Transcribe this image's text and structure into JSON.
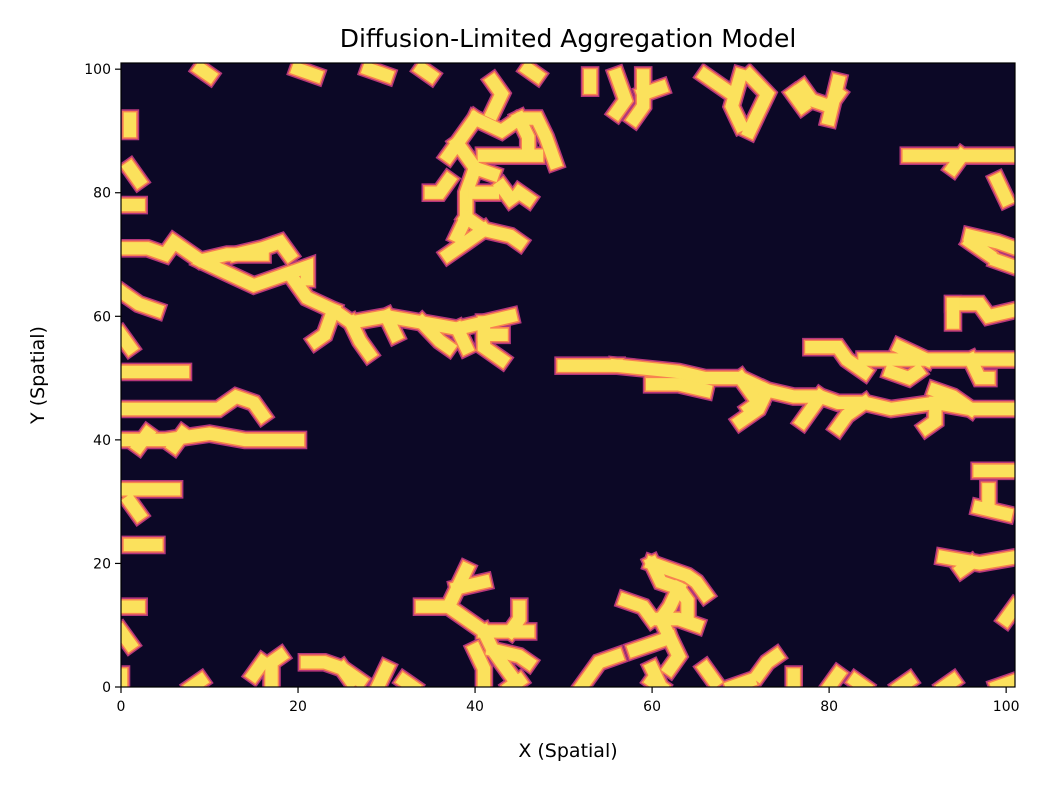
{
  "chart_data": {
    "type": "heatmap",
    "title": "Diffusion-Limited Aggregation Model",
    "xlabel": "X (Spatial)",
    "ylabel": "Y (Spatial)",
    "xlim": [
      0,
      101
    ],
    "ylim": [
      0,
      101
    ],
    "xticks": [
      0,
      20,
      40,
      60,
      80,
      100
    ],
    "yticks": [
      0,
      20,
      40,
      60,
      80,
      100
    ],
    "colormap": {
      "empty": "#0c0826",
      "edge_outer": "#b5367a",
      "edge_inner": "#f8824f",
      "aggregate": "#fbe15c"
    },
    "aggregate_paths": [
      [
        [
          0,
          71
        ],
        [
          3,
          71
        ],
        [
          5,
          70
        ],
        [
          6,
          72
        ],
        [
          9,
          69
        ],
        [
          12,
          70
        ],
        [
          16,
          70
        ]
      ],
      [
        [
          9,
          69
        ],
        [
          12,
          67
        ],
        [
          15,
          65
        ],
        [
          19,
          67
        ],
        [
          21,
          63
        ],
        [
          24,
          61
        ],
        [
          26,
          59
        ],
        [
          30,
          60
        ],
        [
          34,
          59
        ],
        [
          38,
          58
        ],
        [
          41,
          59
        ],
        [
          44,
          60
        ]
      ],
      [
        [
          13,
          70
        ],
        [
          16,
          71
        ],
        [
          18,
          72
        ],
        [
          19,
          70
        ]
      ],
      [
        [
          19,
          67
        ],
        [
          21,
          68
        ],
        [
          21,
          66
        ]
      ],
      [
        [
          24,
          61
        ],
        [
          23,
          57
        ],
        [
          22,
          56
        ]
      ],
      [
        [
          26,
          59
        ],
        [
          27,
          56
        ],
        [
          28,
          54
        ]
      ],
      [
        [
          30,
          60
        ],
        [
          31,
          57
        ]
      ],
      [
        [
          34,
          59
        ],
        [
          36,
          56
        ],
        [
          37,
          55
        ]
      ],
      [
        [
          38,
          58
        ],
        [
          39,
          55
        ]
      ],
      [
        [
          41,
          59
        ],
        [
          41,
          55
        ],
        [
          43,
          53
        ]
      ],
      [
        [
          41,
          57
        ],
        [
          43,
          57
        ]
      ],
      [
        [
          0,
          64
        ],
        [
          2,
          62
        ],
        [
          4,
          61
        ]
      ],
      [
        [
          0,
          57
        ],
        [
          1,
          55
        ]
      ],
      [
        [
          0,
          51
        ],
        [
          7,
          51
        ]
      ],
      [
        [
          0,
          45
        ],
        [
          8,
          45
        ],
        [
          11,
          45
        ],
        [
          13,
          47
        ],
        [
          15,
          46
        ],
        [
          16,
          44
        ]
      ],
      [
        [
          0,
          40
        ],
        [
          5,
          40
        ],
        [
          10,
          41
        ],
        [
          14,
          40
        ],
        [
          20,
          40
        ]
      ],
      [
        [
          2,
          39
        ],
        [
          3,
          41
        ]
      ],
      [
        [
          6,
          39
        ],
        [
          7,
          41
        ]
      ],
      [
        [
          0,
          32
        ],
        [
          6,
          32
        ]
      ],
      [
        [
          1,
          30
        ],
        [
          2,
          28
        ]
      ],
      [
        [
          1,
          23
        ],
        [
          4,
          23
        ]
      ],
      [
        [
          0,
          13
        ],
        [
          2,
          13
        ]
      ],
      [
        [
          0,
          9
        ],
        [
          1,
          7
        ]
      ],
      [
        [
          0,
          2
        ],
        [
          0,
          0
        ]
      ],
      [
        [
          40,
          92
        ],
        [
          43,
          90
        ],
        [
          45,
          92
        ],
        [
          47,
          92
        ],
        [
          48,
          89
        ],
        [
          49,
          85
        ]
      ],
      [
        [
          45,
          92
        ],
        [
          46,
          89
        ],
        [
          46,
          87
        ]
      ],
      [
        [
          41,
          86
        ],
        [
          45,
          86
        ],
        [
          47,
          86
        ]
      ],
      [
        [
          40,
          92
        ],
        [
          38,
          88
        ],
        [
          37,
          86
        ]
      ],
      [
        [
          38,
          88
        ],
        [
          40,
          84
        ],
        [
          39,
          80
        ],
        [
          39,
          76
        ],
        [
          38,
          73
        ]
      ],
      [
        [
          37,
          82
        ],
        [
          36,
          80
        ],
        [
          35,
          80
        ]
      ],
      [
        [
          40,
          84
        ],
        [
          42,
          83
        ]
      ],
      [
        [
          40,
          80
        ],
        [
          42,
          80
        ]
      ],
      [
        [
          43,
          81
        ],
        [
          44,
          79
        ]
      ],
      [
        [
          45,
          80
        ],
        [
          46,
          79
        ]
      ],
      [
        [
          39,
          76
        ],
        [
          41,
          74
        ],
        [
          44,
          73
        ],
        [
          45,
          72
        ]
      ],
      [
        [
          41,
          74
        ],
        [
          39,
          72
        ],
        [
          37,
          70
        ]
      ],
      [
        [
          42,
          98
        ],
        [
          43,
          96
        ],
        [
          42,
          93
        ]
      ],
      [
        [
          56,
          52
        ],
        [
          63,
          51
        ],
        [
          66,
          50
        ],
        [
          70,
          50
        ],
        [
          73,
          48
        ],
        [
          76,
          47
        ],
        [
          79,
          47
        ],
        [
          81,
          46
        ],
        [
          84,
          46
        ],
        [
          87,
          45
        ],
        [
          92,
          46
        ],
        [
          96,
          45
        ],
        [
          101,
          45
        ]
      ],
      [
        [
          50,
          52
        ],
        [
          56,
          52
        ]
      ],
      [
        [
          60,
          49
        ],
        [
          63,
          49
        ],
        [
          66,
          48
        ]
      ],
      [
        [
          70,
          50
        ],
        [
          72,
          46
        ],
        [
          71,
          45
        ]
      ],
      [
        [
          73,
          48
        ],
        [
          72,
          45
        ],
        [
          70,
          43
        ]
      ],
      [
        [
          79,
          47
        ],
        [
          78,
          45
        ],
        [
          77,
          43
        ]
      ],
      [
        [
          84,
          46
        ],
        [
          82,
          44
        ],
        [
          81,
          42
        ]
      ],
      [
        [
          92,
          46
        ],
        [
          92,
          43
        ],
        [
          91,
          42
        ]
      ],
      [
        [
          96,
          45
        ],
        [
          94,
          47
        ],
        [
          92,
          48
        ]
      ],
      [
        [
          78,
          55
        ],
        [
          81,
          55
        ],
        [
          82,
          53
        ],
        [
          84,
          51
        ]
      ],
      [
        [
          84,
          53
        ],
        [
          90,
          53
        ],
        [
          95,
          53
        ],
        [
          101,
          53
        ]
      ],
      [
        [
          88,
          55
        ],
        [
          91,
          53
        ]
      ],
      [
        [
          87,
          51
        ],
        [
          89,
          50
        ],
        [
          90,
          51
        ]
      ],
      [
        [
          96,
          53
        ],
        [
          97,
          50
        ],
        [
          98,
          50
        ]
      ],
      [
        [
          89,
          86
        ],
        [
          101,
          86
        ]
      ],
      [
        [
          95,
          86
        ],
        [
          94,
          84
        ]
      ],
      [
        [
          96,
          73
        ],
        [
          99,
          72
        ],
        [
          101,
          71
        ]
      ],
      [
        [
          96,
          72
        ],
        [
          98,
          70
        ]
      ],
      [
        [
          94,
          62
        ],
        [
          97,
          62
        ],
        [
          98,
          60
        ],
        [
          101,
          61
        ]
      ],
      [
        [
          94,
          62
        ],
        [
          94,
          59
        ]
      ],
      [
        [
          99,
          82
        ],
        [
          100,
          79
        ]
      ],
      [
        [
          99,
          69
        ],
        [
          101,
          68
        ]
      ],
      [
        [
          97,
          35
        ],
        [
          101,
          35
        ]
      ],
      [
        [
          98,
          32
        ],
        [
          98,
          30
        ]
      ],
      [
        [
          97,
          29
        ],
        [
          100,
          28
        ]
      ],
      [
        [
          93,
          21
        ],
        [
          97,
          20
        ],
        [
          101,
          21
        ]
      ],
      [
        [
          96,
          20
        ],
        [
          95,
          19
        ]
      ],
      [
        [
          101,
          13
        ],
        [
          100,
          11
        ]
      ],
      [
        [
          56,
          99
        ],
        [
          57,
          95
        ],
        [
          56,
          93
        ]
      ],
      [
        [
          59,
          99
        ],
        [
          59,
          94
        ],
        [
          58,
          92
        ]
      ],
      [
        [
          59,
          96
        ],
        [
          61,
          97
        ]
      ],
      [
        [
          53,
          99
        ],
        [
          53,
          97
        ]
      ],
      [
        [
          70,
          99
        ],
        [
          69,
          94
        ],
        [
          70,
          91
        ]
      ],
      [
        [
          71,
          99
        ],
        [
          73,
          96
        ],
        [
          72,
          93
        ],
        [
          71,
          90
        ]
      ],
      [
        [
          66,
          99
        ],
        [
          69,
          96
        ]
      ],
      [
        [
          77,
          97
        ],
        [
          78,
          95
        ],
        [
          80,
          94
        ],
        [
          81,
          96
        ]
      ],
      [
        [
          81,
          98
        ],
        [
          80,
          92
        ]
      ],
      [
        [
          76,
          96
        ],
        [
          77,
          94
        ]
      ],
      [
        [
          20,
          100
        ],
        [
          22,
          99
        ]
      ],
      [
        [
          34,
          100
        ],
        [
          35,
          99
        ]
      ],
      [
        [
          46,
          100
        ],
        [
          47,
          99
        ]
      ],
      [
        [
          9,
          100
        ],
        [
          10,
          99
        ]
      ],
      [
        [
          28,
          100
        ],
        [
          30,
          99
        ]
      ],
      [
        [
          1,
          92
        ],
        [
          1,
          90
        ]
      ],
      [
        [
          1,
          84
        ],
        [
          2,
          82
        ]
      ],
      [
        [
          0,
          78
        ],
        [
          2,
          78
        ]
      ],
      [
        [
          41,
          9
        ],
        [
          44,
          9
        ],
        [
          46,
          9
        ]
      ],
      [
        [
          41,
          9
        ],
        [
          39,
          11
        ],
        [
          37,
          13
        ]
      ],
      [
        [
          37,
          13
        ],
        [
          34,
          13
        ]
      ],
      [
        [
          37,
          13
        ],
        [
          38,
          16
        ],
        [
          39,
          19
        ]
      ],
      [
        [
          38,
          16
        ],
        [
          41,
          17
        ]
      ],
      [
        [
          44,
          9
        ],
        [
          45,
          11
        ],
        [
          45,
          13
        ]
      ],
      [
        [
          41,
          9
        ],
        [
          42,
          6
        ],
        [
          43,
          4
        ],
        [
          44,
          2
        ]
      ],
      [
        [
          42,
          6
        ],
        [
          45,
          5
        ],
        [
          46,
          4
        ]
      ],
      [
        [
          40,
          6
        ],
        [
          41,
          3
        ],
        [
          41,
          0
        ]
      ],
      [
        [
          60,
          20
        ],
        [
          61,
          17
        ],
        [
          63,
          16
        ],
        [
          64,
          14
        ],
        [
          64,
          12
        ]
      ],
      [
        [
          60,
          20
        ],
        [
          62,
          19
        ],
        [
          64,
          18
        ],
        [
          65,
          17
        ],
        [
          66,
          15
        ]
      ],
      [
        [
          63,
          16
        ],
        [
          62,
          13
        ],
        [
          61,
          11
        ],
        [
          62,
          8
        ],
        [
          63,
          5
        ],
        [
          62,
          3
        ]
      ],
      [
        [
          61,
          11
        ],
        [
          63,
          11
        ],
        [
          65,
          10
        ]
      ],
      [
        [
          57,
          14
        ],
        [
          59,
          13
        ],
        [
          60,
          11
        ]
      ],
      [
        [
          62,
          8
        ],
        [
          60,
          7
        ],
        [
          58,
          6
        ]
      ],
      [
        [
          60,
          3
        ],
        [
          61,
          0
        ]
      ],
      [
        [
          52,
          0
        ],
        [
          54,
          4
        ],
        [
          56,
          5
        ]
      ],
      [
        [
          61,
          0
        ],
        [
          60,
          1
        ]
      ],
      [
        [
          66,
          3
        ],
        [
          67,
          1
        ]
      ],
      [
        [
          72,
          2
        ],
        [
          73,
          4
        ],
        [
          74,
          5
        ]
      ],
      [
        [
          69,
          0
        ],
        [
          71,
          1
        ]
      ],
      [
        [
          17,
          0
        ],
        [
          17,
          4
        ],
        [
          18,
          5
        ]
      ],
      [
        [
          21,
          4
        ],
        [
          23,
          4
        ],
        [
          25,
          3
        ],
        [
          27,
          1
        ]
      ],
      [
        [
          25,
          3
        ],
        [
          26,
          1
        ]
      ],
      [
        [
          29,
          0
        ],
        [
          30,
          3
        ]
      ],
      [
        [
          15,
          2
        ],
        [
          16,
          4
        ]
      ],
      [
        [
          32,
          1
        ],
        [
          33,
          0
        ]
      ],
      [
        [
          44,
          0
        ],
        [
          45,
          1
        ]
      ],
      [
        [
          76,
          0
        ],
        [
          76,
          2
        ]
      ],
      [
        [
          80,
          0
        ],
        [
          81,
          2
        ]
      ],
      [
        [
          84,
          0
        ],
        [
          83,
          1
        ]
      ],
      [
        [
          88,
          0
        ],
        [
          89,
          1
        ]
      ],
      [
        [
          93,
          0
        ],
        [
          94,
          1
        ]
      ],
      [
        [
          99,
          0
        ],
        [
          101,
          1
        ]
      ],
      [
        [
          8,
          0
        ],
        [
          9,
          1
        ]
      ]
    ]
  }
}
